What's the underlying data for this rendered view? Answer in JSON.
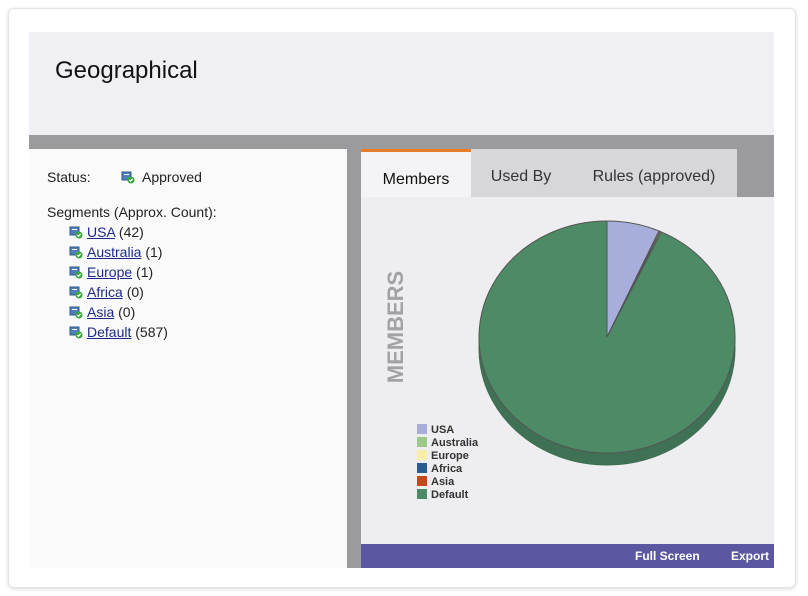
{
  "page_title": "Geographical",
  "status": {
    "label": "Status:",
    "value": "Approved"
  },
  "segments": {
    "heading": "Segments (Approx. Count):",
    "items": [
      {
        "name": "USA",
        "count": "(42)"
      },
      {
        "name": "Australia",
        "count": "(1)"
      },
      {
        "name": "Europe",
        "count": "(1)"
      },
      {
        "name": "Africa",
        "count": "(0)"
      },
      {
        "name": "Asia",
        "count": "(0)"
      },
      {
        "name": "Default",
        "count": "(587)"
      }
    ]
  },
  "tabs": [
    {
      "label": "Members",
      "active": true
    },
    {
      "label": "Used By",
      "active": false
    },
    {
      "label": "Rules (approved)",
      "active": false
    }
  ],
  "chart_data": {
    "type": "pie",
    "title": "MEMBERS",
    "series": [
      {
        "name": "USA",
        "value": 42,
        "color": "#a8aedb"
      },
      {
        "name": "Australia",
        "value": 1,
        "color": "#9ec98a"
      },
      {
        "name": "Europe",
        "value": 1,
        "color": "#f7eea8"
      },
      {
        "name": "Africa",
        "value": 0,
        "color": "#2b5c8f"
      },
      {
        "name": "Asia",
        "value": 0,
        "color": "#c04a1c"
      },
      {
        "name": "Default",
        "value": 587,
        "color": "#4d8a66"
      }
    ],
    "legend": "bottom-left"
  },
  "footer": {
    "fullscreen": "Full Screen",
    "export": "Export"
  },
  "colors": {
    "accent_tab": "#e87d2c",
    "footer_bar": "#5b57a1",
    "divider": "#9b9b9e"
  }
}
